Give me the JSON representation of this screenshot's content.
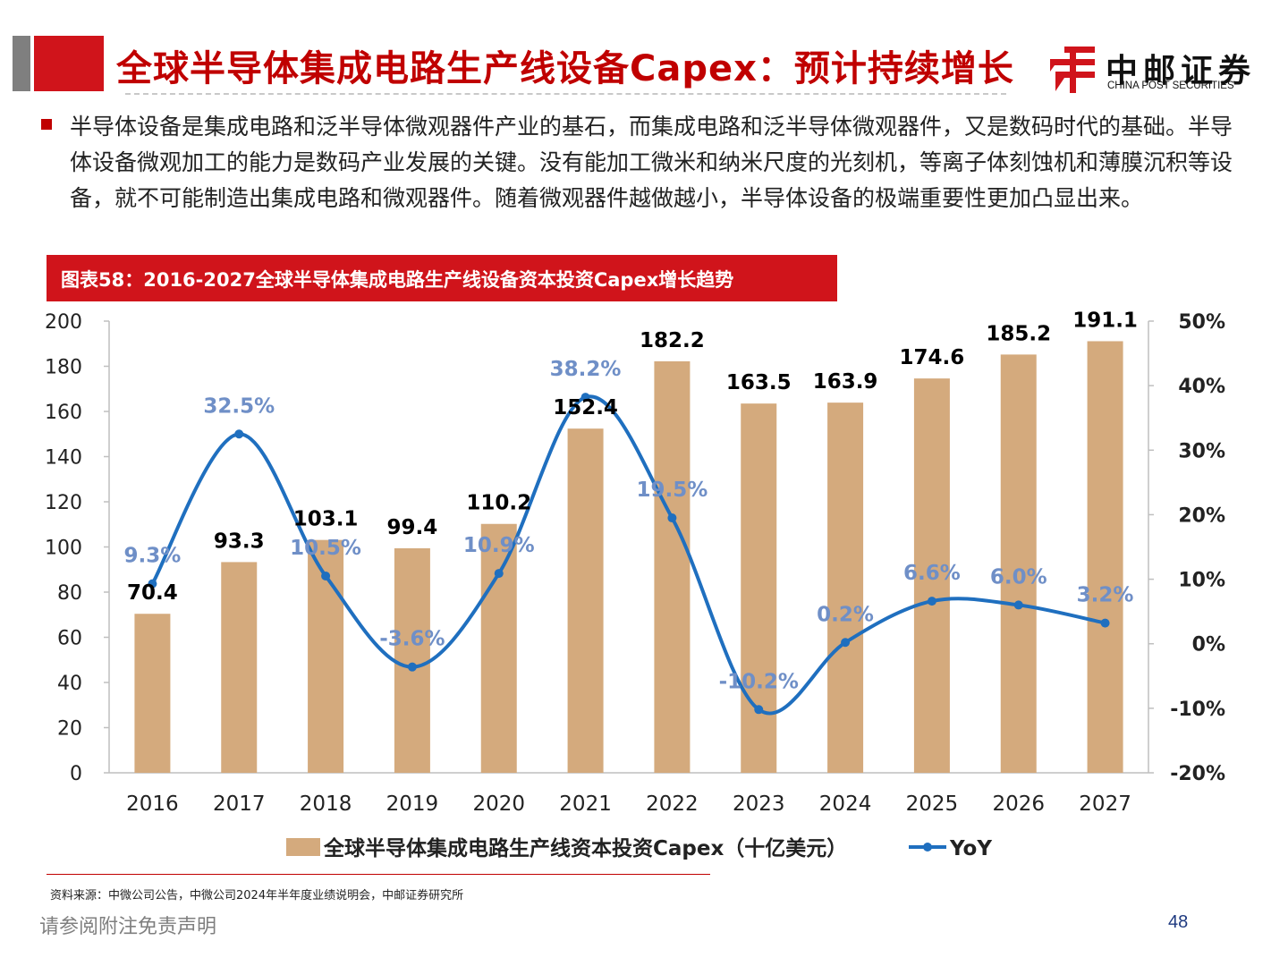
{
  "header": {
    "title": "全球半导体集成电路生产线设备Capex：预计持续增长",
    "logo_cn": "中邮证券",
    "logo_en": "CHINA POST SECURITIES"
  },
  "body_text": "半导体设备是集成电路和泛半导体微观器件产业的基石，而集成电路和泛半导体微观器件，又是数码时代的基础。半导体设备微观加工的能力是数码产业发展的关键。没有能加工微米和纳米尺度的光刻机，等离子体刻蚀机和薄膜沉积等设备，就不可能制造出集成电路和微观器件。随着微观器件越做越小，半导体设备的极端重要性更加凸显出来。",
  "figure_title": "图表58：2016-2027全球半导体集成电路生产线设备资本投资Capex增长趋势",
  "chart_data": {
    "type": "bar",
    "categories": [
      "2016",
      "2017",
      "2018",
      "2019",
      "2020",
      "2021",
      "2022",
      "2023",
      "2024",
      "2025",
      "2026",
      "2027"
    ],
    "series": [
      {
        "name": "全球半导体集成电路生产线资本投资Capex（十亿美元）",
        "type": "bar",
        "axis": "left",
        "values": [
          70.4,
          93.3,
          103.1,
          99.4,
          110.2,
          152.4,
          182.2,
          163.5,
          163.9,
          174.6,
          185.2,
          191.1
        ],
        "labels": [
          "70.4",
          "93.3",
          "103.1",
          "99.4",
          "110.2",
          "152.4",
          "182.2",
          "163.5",
          "163.9",
          "174.6",
          "185.2",
          "191.1"
        ]
      },
      {
        "name": "YoY",
        "type": "line",
        "axis": "right",
        "values": [
          9.3,
          32.5,
          10.5,
          -3.6,
          10.9,
          38.2,
          19.5,
          -10.2,
          0.2,
          6.6,
          6.0,
          3.2
        ],
        "labels": [
          "9.3%",
          "32.5%",
          "10.5%",
          "-3.6%",
          "10.9%",
          "38.2%",
          "19.5%",
          "-10.2%",
          "0.2%",
          "6.6%",
          "6.0%",
          "3.2%"
        ]
      }
    ],
    "ylim": [
      0,
      200
    ],
    "y_ticks": [
      "0",
      "20",
      "40",
      "60",
      "80",
      "100",
      "120",
      "140",
      "160",
      "180",
      "200"
    ],
    "y2lim": [
      -20,
      50
    ],
    "y2_ticks": [
      "-20%",
      "-10%",
      "0%",
      "10%",
      "20%",
      "30%",
      "40%",
      "50%"
    ],
    "grid": false,
    "legend": "bottom",
    "colors": {
      "bar": "#d4aa7d",
      "line": "#1f6fbf",
      "line_label": "#6f8fc7",
      "bar_label": "#000000"
    }
  },
  "footer": {
    "source": "资料来源：中微公司公告，中微公司2024年半年度业绩说明会，中邮证券研究所",
    "disclaimer": "请参阅附注免责声明",
    "page": "48"
  }
}
